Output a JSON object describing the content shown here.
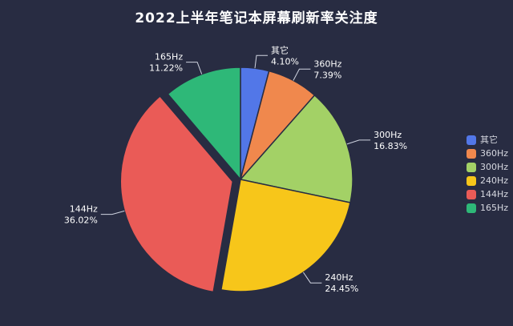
{
  "chart_data": {
    "type": "pie",
    "title": "2022上半年笔记本屏幕刷新率关注度",
    "background": "#282c42",
    "legend_position": "right",
    "direction": "clockwise",
    "start_angle": "top",
    "slices": [
      {
        "label": "其它",
        "value": 4.1,
        "percent_label": "4.10%",
        "color": "#5277e8",
        "exploded": false
      },
      {
        "label": "360Hz",
        "value": 7.39,
        "percent_label": "7.39%",
        "color": "#f0884d",
        "exploded": false
      },
      {
        "label": "300Hz",
        "value": 16.83,
        "percent_label": "16.83%",
        "color": "#a3d166",
        "exploded": false
      },
      {
        "label": "240Hz",
        "value": 24.45,
        "percent_label": "24.45%",
        "color": "#f7c61a",
        "exploded": false
      },
      {
        "label": "144Hz",
        "value": 36.02,
        "percent_label": "36.02%",
        "color": "#ea5b57",
        "exploded": true
      },
      {
        "label": "165Hz",
        "value": 11.22,
        "percent_label": "11.22%",
        "color": "#2eb878",
        "exploded": false
      }
    ],
    "legend": [
      "其它",
      "360Hz",
      "300Hz",
      "240Hz",
      "144Hz",
      "165Hz"
    ]
  }
}
